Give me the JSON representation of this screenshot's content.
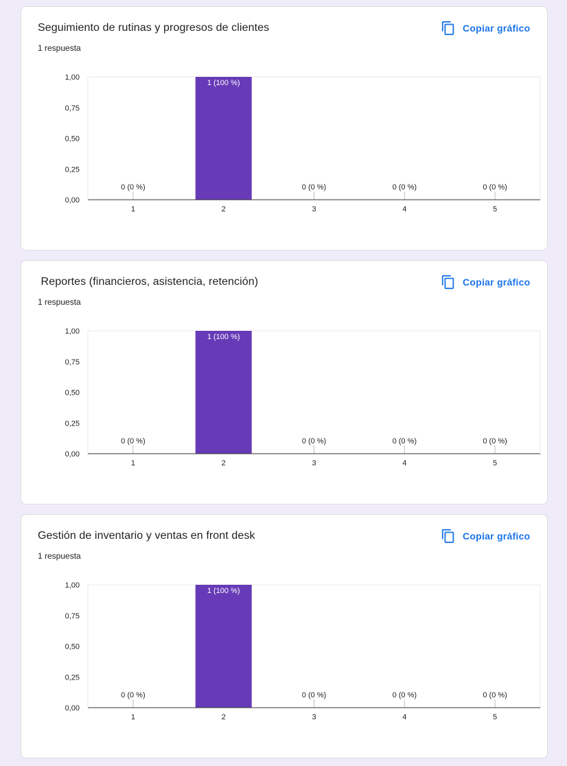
{
  "colors": {
    "background": "#efebf8",
    "card": "#ffffff",
    "accent": "#1a73e8",
    "bar": "#673ab7"
  },
  "cards": [
    {
      "title": "Seguimiento de rutinas y progresos de clientes",
      "subtitle": "1 respuesta",
      "copy_label": "Copiar gráfico",
      "copy_icon": "copy-icon"
    },
    {
      "title": " Reportes (financieros, asistencia, retención)",
      "subtitle": "1 respuesta",
      "copy_label": "Copiar gráfico",
      "copy_icon": "copy-icon"
    },
    {
      "title": "Gestión de inventario y ventas en front desk",
      "subtitle": "1 respuesta",
      "copy_label": "Copiar gráfico",
      "copy_icon": "copy-icon"
    }
  ],
  "chart_data": [
    {
      "type": "bar",
      "categories": [
        "1",
        "2",
        "3",
        "4",
        "5"
      ],
      "values": [
        0,
        1,
        0,
        0,
        0
      ],
      "data_labels": [
        "0 (0 %)",
        "1 (100 %)",
        "0 (0 %)",
        "0 (0 %)",
        "0 (0 %)"
      ],
      "y_ticks": [
        "0,00",
        "0,25",
        "0,50",
        "0,75",
        "1,00"
      ],
      "ylim": [
        0,
        1
      ],
      "grid": false,
      "color": "#673ab7"
    },
    {
      "type": "bar",
      "categories": [
        "1",
        "2",
        "3",
        "4",
        "5"
      ],
      "values": [
        0,
        1,
        0,
        0,
        0
      ],
      "data_labels": [
        "0 (0 %)",
        "1 (100 %)",
        "0 (0 %)",
        "0 (0 %)",
        "0 (0 %)"
      ],
      "y_ticks": [
        "0,00",
        "0,25",
        "0,50",
        "0,75",
        "1,00"
      ],
      "ylim": [
        0,
        1
      ],
      "grid": false,
      "color": "#673ab7"
    },
    {
      "type": "bar",
      "categories": [
        "1",
        "2",
        "3",
        "4",
        "5"
      ],
      "values": [
        0,
        1,
        0,
        0,
        0
      ],
      "data_labels": [
        "0 (0 %)",
        "1 (100 %)",
        "0 (0 %)",
        "0 (0 %)",
        "0 (0 %)"
      ],
      "y_ticks": [
        "0,00",
        "0,25",
        "0,50",
        "0,75",
        "1,00"
      ],
      "ylim": [
        0,
        1
      ],
      "grid": false,
      "color": "#673ab7"
    }
  ]
}
